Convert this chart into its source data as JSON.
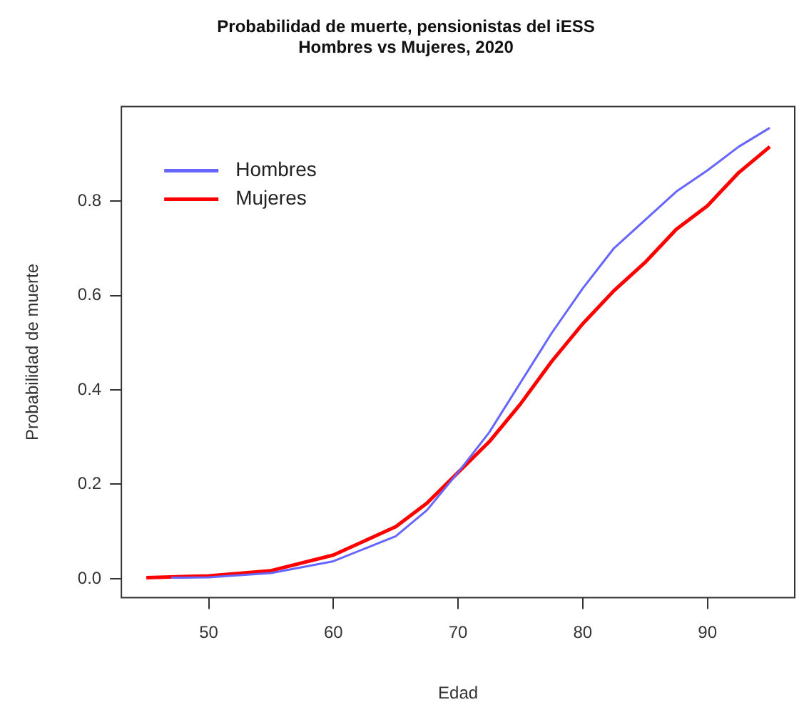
{
  "chart_data": {
    "type": "line",
    "title": "Probabilidad de muerte, pensionistas del iESS",
    "subtitle": "Hombres vs Mujeres, 2020",
    "xlabel": "Edad",
    "ylabel": "Probabilidad de muerte",
    "xlim": [
      43,
      97
    ],
    "xticks": [
      50,
      60,
      70,
      80,
      90
    ],
    "ylim": [
      -0.04,
      1.0
    ],
    "yticks": [
      {
        "value": 0,
        "label": "0.0"
      },
      0.2,
      0.4,
      0.6,
      0.8
    ],
    "grid": false,
    "legend": "top left",
    "marker": "none",
    "line_style": "solid",
    "series": [
      {
        "name": "Hombres",
        "color": "#6666ff",
        "x": [
          47,
          50,
          55,
          60,
          65,
          67.5,
          70,
          72.5,
          75,
          77.5,
          80,
          82.5,
          85,
          87.5,
          90,
          92.5,
          95
        ],
        "values": [
          0.002,
          0.003,
          0.012,
          0.037,
          0.09,
          0.145,
          0.225,
          0.31,
          0.415,
          0.52,
          0.615,
          0.7,
          0.76,
          0.82,
          0.865,
          0.915,
          0.955
        ]
      },
      {
        "name": "Mujeres",
        "color": "#ff0000",
        "x": [
          45,
          50,
          55,
          60,
          65,
          67.5,
          70,
          72.5,
          75,
          77.5,
          80,
          82.5,
          85,
          87.5,
          90,
          92.5,
          95
        ],
        "values": [
          0.002,
          0.006,
          0.017,
          0.05,
          0.11,
          0.16,
          0.225,
          0.29,
          0.37,
          0.46,
          0.54,
          0.61,
          0.67,
          0.74,
          0.79,
          0.86,
          0.915
        ]
      }
    ]
  }
}
